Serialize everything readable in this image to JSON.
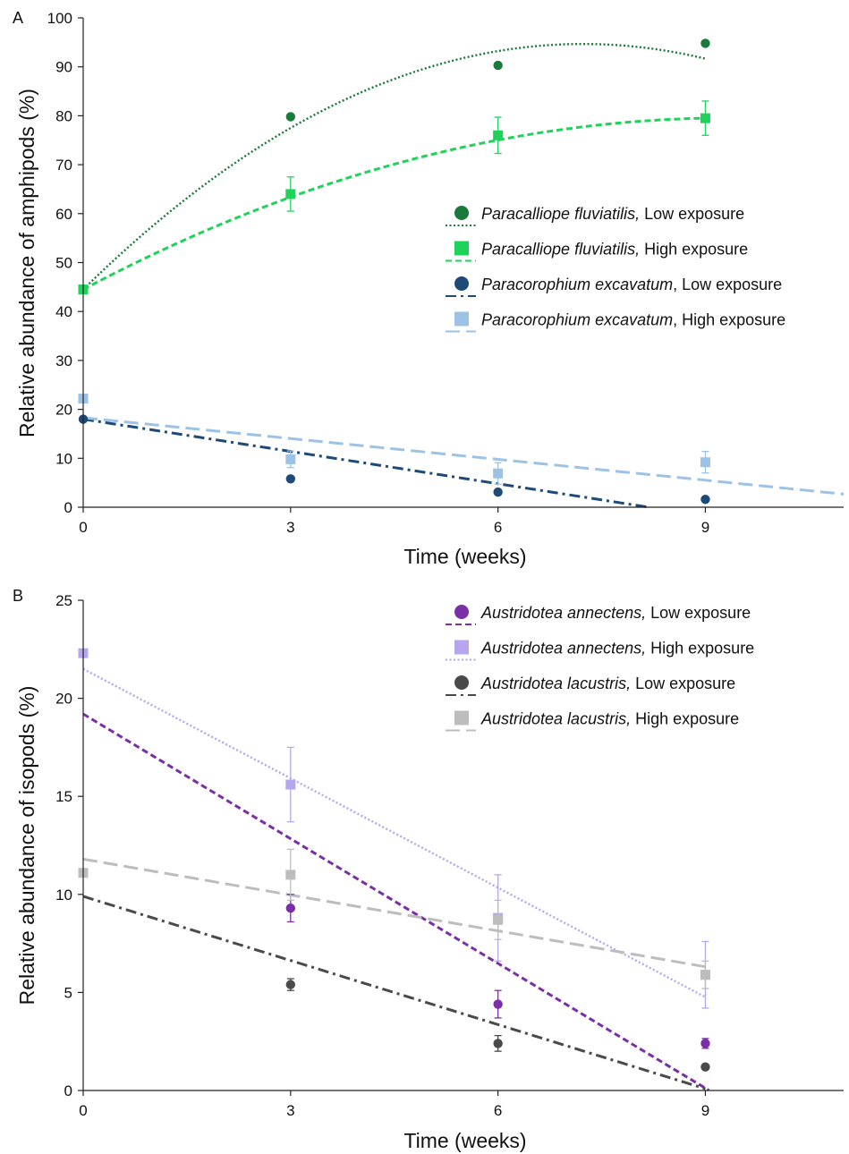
{
  "chart_data": [
    {
      "panel_label": "A",
      "type": "scatter",
      "xlabel": "Time (weeks)",
      "ylabel": "Relative abundance of amphipods (%)",
      "x_ticks": [
        0,
        3,
        6,
        9
      ],
      "y_ticks": [
        0,
        10,
        20,
        30,
        40,
        50,
        60,
        70,
        80,
        90,
        100
      ],
      "xlim": [
        0,
        11
      ],
      "ylim": [
        0,
        100
      ],
      "grid": false,
      "legend_position": "right",
      "series": [
        {
          "name_italic": "Paracalliope fluviatilis,",
          "name_rest": " Low exposure",
          "color": "#1a7a3a",
          "marker": "circle",
          "line_style": "dotted",
          "x": [
            0,
            3,
            6,
            9
          ],
          "y": [
            44.5,
            79.8,
            90.3,
            94.8
          ],
          "err": [
            0,
            0,
            0,
            0
          ],
          "fit": "quadratic",
          "fit_coef": [
            44.5,
            13.88,
            -0.96
          ],
          "fit_range": [
            0,
            9
          ]
        },
        {
          "name_italic": "Paracalliope fluviatilis,",
          "name_rest": " High exposure",
          "color": "#1fd35a",
          "marker": "square",
          "line_style": "dashed",
          "x": [
            0,
            3,
            6,
            9
          ],
          "y": [
            44.5,
            64,
            76,
            79.5
          ],
          "err": [
            0,
            3.5,
            3.7,
            3.5
          ],
          "fit": "quadratic",
          "fit_coef": [
            44.5,
            7.49,
            -0.4
          ],
          "fit_range": [
            0,
            9
          ]
        },
        {
          "name_italic": "Paracorophium excavatum",
          "name_rest": ", Low exposure",
          "color": "#1e4a78",
          "marker": "circle",
          "line_style": "dashdot",
          "x": [
            0,
            3,
            6,
            9
          ],
          "y": [
            18,
            5.8,
            3.1,
            1.6
          ],
          "err": [
            0,
            0,
            0,
            0
          ],
          "fit": "linear",
          "fit_coef": [
            18,
            -2.2
          ],
          "fit_range": [
            0,
            8.18
          ]
        },
        {
          "name_italic": "Paracorophium excavatum",
          "name_rest": ", High exposure",
          "color": "#9cc3e6",
          "marker": "square",
          "line_style": "longdash",
          "x": [
            0,
            3,
            6,
            9
          ],
          "y": [
            22.2,
            9.8,
            6.9,
            9.2
          ],
          "err": [
            0,
            1.7,
            2.2,
            2.2
          ],
          "fit": "linear",
          "fit_coef": [
            18.3,
            -1.42
          ],
          "fit_range": [
            0,
            11
          ]
        }
      ]
    },
    {
      "panel_label": "B",
      "type": "scatter",
      "xlabel": "Time (weeks)",
      "ylabel": "Relative abundance of isopods (%)",
      "x_ticks": [
        0,
        3,
        6,
        9
      ],
      "y_ticks": [
        0,
        5,
        10,
        15,
        20,
        25
      ],
      "xlim": [
        0,
        11
      ],
      "ylim": [
        0,
        25
      ],
      "grid": false,
      "legend_position": "top-right",
      "series": [
        {
          "name_italic": "Austridotea annectens,",
          "name_rest": " Low exposure",
          "color": "#7a2fa6",
          "marker": "circle",
          "line_style": "dashed",
          "x": [
            3,
            6,
            9
          ],
          "y": [
            9.3,
            4.4,
            2.4
          ],
          "err": [
            0.7,
            0.7,
            0.25
          ],
          "fit": "linear",
          "fit_coef": [
            19.2,
            -2.12
          ],
          "fit_range": [
            0,
            9.05
          ]
        },
        {
          "name_italic": "Austridotea annectens,",
          "name_rest": " High exposure",
          "color": "#b6a6ee",
          "marker": "square",
          "line_style": "dotted",
          "x": [
            0,
            3,
            6,
            9
          ],
          "y": [
            22.3,
            15.6,
            8.8,
            5.9
          ],
          "err": [
            0,
            1.9,
            2.2,
            1.7
          ],
          "fit": "linear",
          "fit_coef": [
            21.5,
            -1.86
          ],
          "fit_range": [
            0,
            9
          ]
        },
        {
          "name_italic": "Austridotea lacustris,",
          "name_rest": " Low exposure",
          "color": "#4a4a4a",
          "marker": "circle",
          "line_style": "dashdot",
          "x": [
            3,
            6,
            9
          ],
          "y": [
            5.4,
            2.4,
            1.2
          ],
          "err": [
            0.3,
            0.4,
            0.1
          ],
          "fit": "linear",
          "fit_coef": [
            9.9,
            -1.09
          ],
          "fit_range": [
            0,
            9
          ]
        },
        {
          "name_italic": "Austridotea lacustris,",
          "name_rest": " High exposure",
          "color": "#bdbdbd",
          "marker": "square",
          "line_style": "longdash",
          "x": [
            0,
            3,
            6,
            9
          ],
          "y": [
            11.1,
            11,
            8.7,
            5.9
          ],
          "err": [
            0,
            1.3,
            1.0,
            0.7
          ],
          "fit": "linear",
          "fit_coef": [
            11.8,
            -0.61
          ],
          "fit_range": [
            0,
            9
          ]
        }
      ]
    }
  ]
}
